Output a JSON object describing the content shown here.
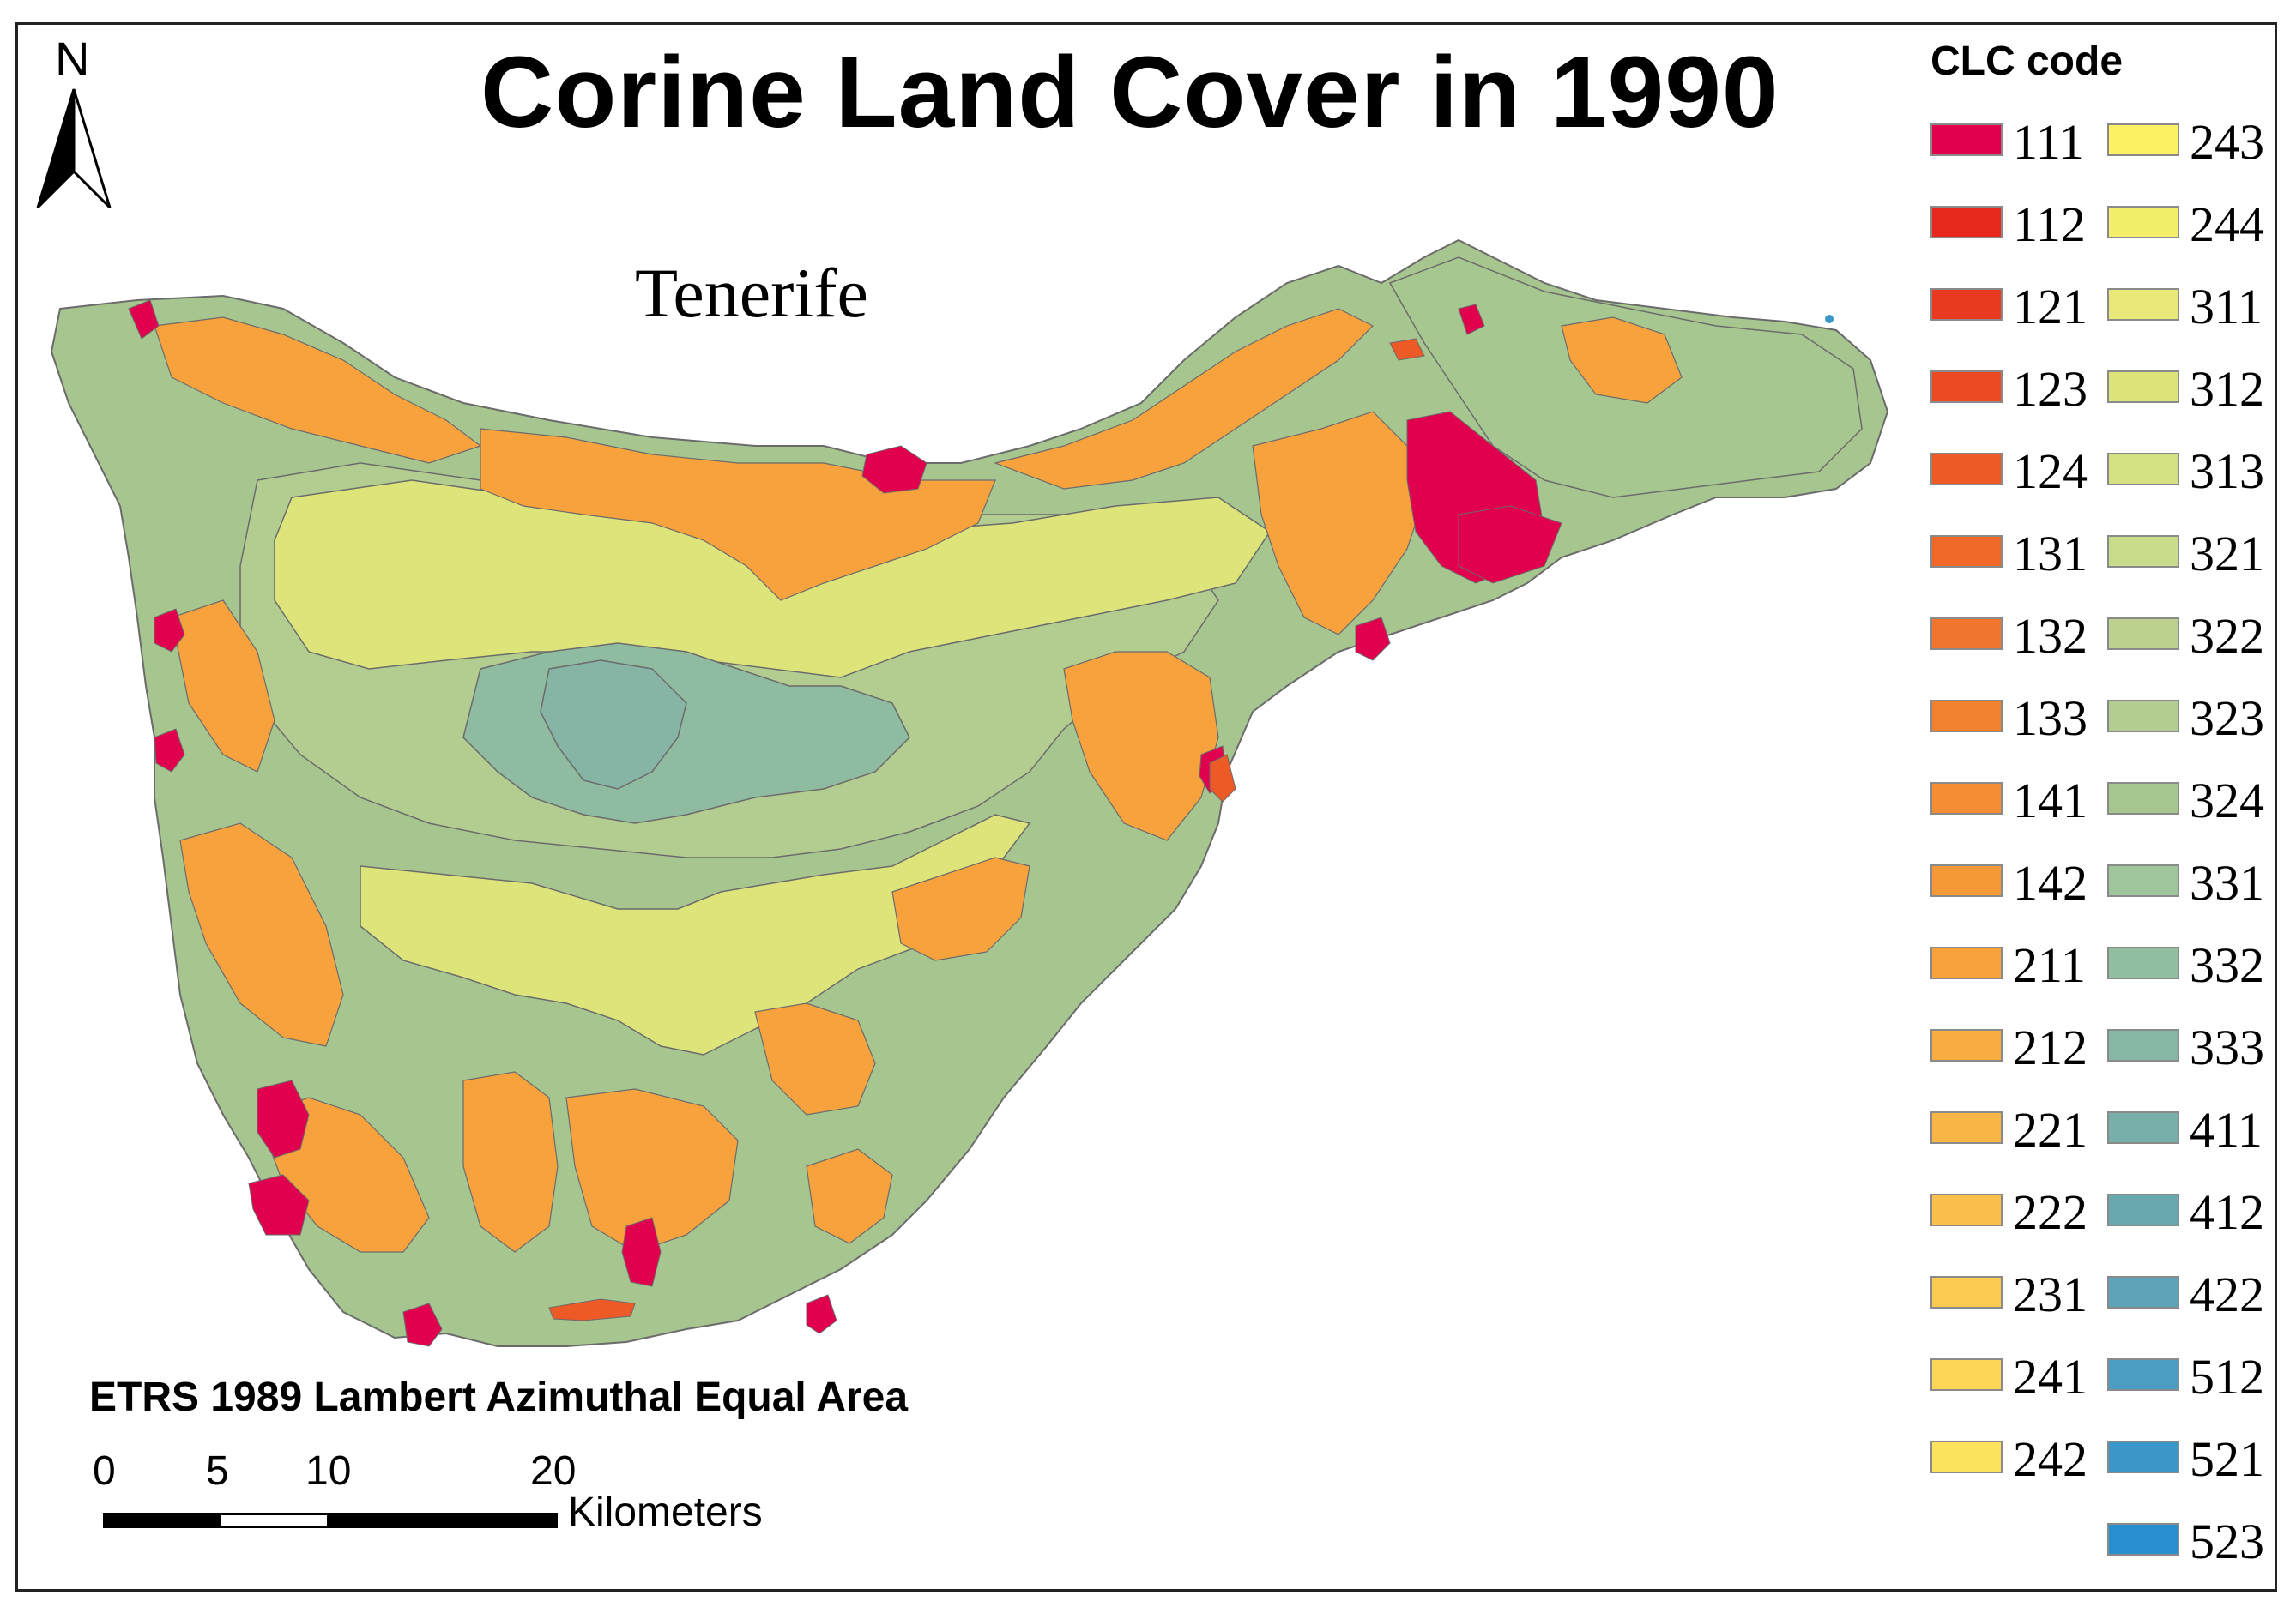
{
  "map": {
    "title": "Corine Land Cover in 1990",
    "island_label": "Tenerife",
    "north_label": "N",
    "projection": "ETRS 1989 Lambert Azimuthal Equal Area",
    "scale": {
      "ticks": [
        "0",
        "5",
        "10",
        "20"
      ],
      "unit": "Kilometers"
    }
  },
  "legend": {
    "title": "CLC code",
    "items": [
      {
        "code": "111",
        "color": "#e0004d"
      },
      {
        "code": "112",
        "color": "#e8281c"
      },
      {
        "code": "121",
        "color": "#e93a1f"
      },
      {
        "code": "123",
        "color": "#eb4a22"
      },
      {
        "code": "124",
        "color": "#ee5a25"
      },
      {
        "code": "131",
        "color": "#ef6828"
      },
      {
        "code": "132",
        "color": "#f1752c"
      },
      {
        "code": "133",
        "color": "#f3822f"
      },
      {
        "code": "141",
        "color": "#f48d33"
      },
      {
        "code": "142",
        "color": "#f59838"
      },
      {
        "code": "211",
        "color": "#f7a23c"
      },
      {
        "code": "212",
        "color": "#f8ac41"
      },
      {
        "code": "221",
        "color": "#f9b646"
      },
      {
        "code": "222",
        "color": "#fac04b"
      },
      {
        "code": "231",
        "color": "#fbca50"
      },
      {
        "code": "241",
        "color": "#fcd556"
      },
      {
        "code": "242",
        "color": "#fce25d"
      },
      {
        "code": "243",
        "color": "#fbf163"
      },
      {
        "code": "244",
        "color": "#f4ef6a"
      },
      {
        "code": "311",
        "color": "#e8e978"
      },
      {
        "code": "312",
        "color": "#dde57a"
      },
      {
        "code": "313",
        "color": "#d5e083"
      },
      {
        "code": "321",
        "color": "#c9dc8c"
      },
      {
        "code": "322",
        "color": "#bdd28e"
      },
      {
        "code": "323",
        "color": "#b3cd91"
      },
      {
        "code": "324",
        "color": "#a7c790"
      },
      {
        "code": "331",
        "color": "#9fc59c"
      },
      {
        "code": "332",
        "color": "#92bea2"
      },
      {
        "code": "333",
        "color": "#86b7a5"
      },
      {
        "code": "411",
        "color": "#78afaa"
      },
      {
        "code": "412",
        "color": "#6aa8b0"
      },
      {
        "code": "422",
        "color": "#5ea3b8"
      },
      {
        "code": "512",
        "color": "#4c9dc2"
      },
      {
        "code": "521",
        "color": "#3b97c8"
      },
      {
        "code": "523",
        "color": "#2990cf"
      }
    ]
  },
  "regions": {
    "scrub_color": "#a6c58f",
    "forest_color": "#8fbba0",
    "summit_color": "#86b4a5",
    "pine_color": "#dde57a",
    "agri_color": "#f7a23c",
    "urban_color": "#e0004d",
    "industrial_color": "#ee5a25",
    "water_color": "#3b97c8"
  }
}
